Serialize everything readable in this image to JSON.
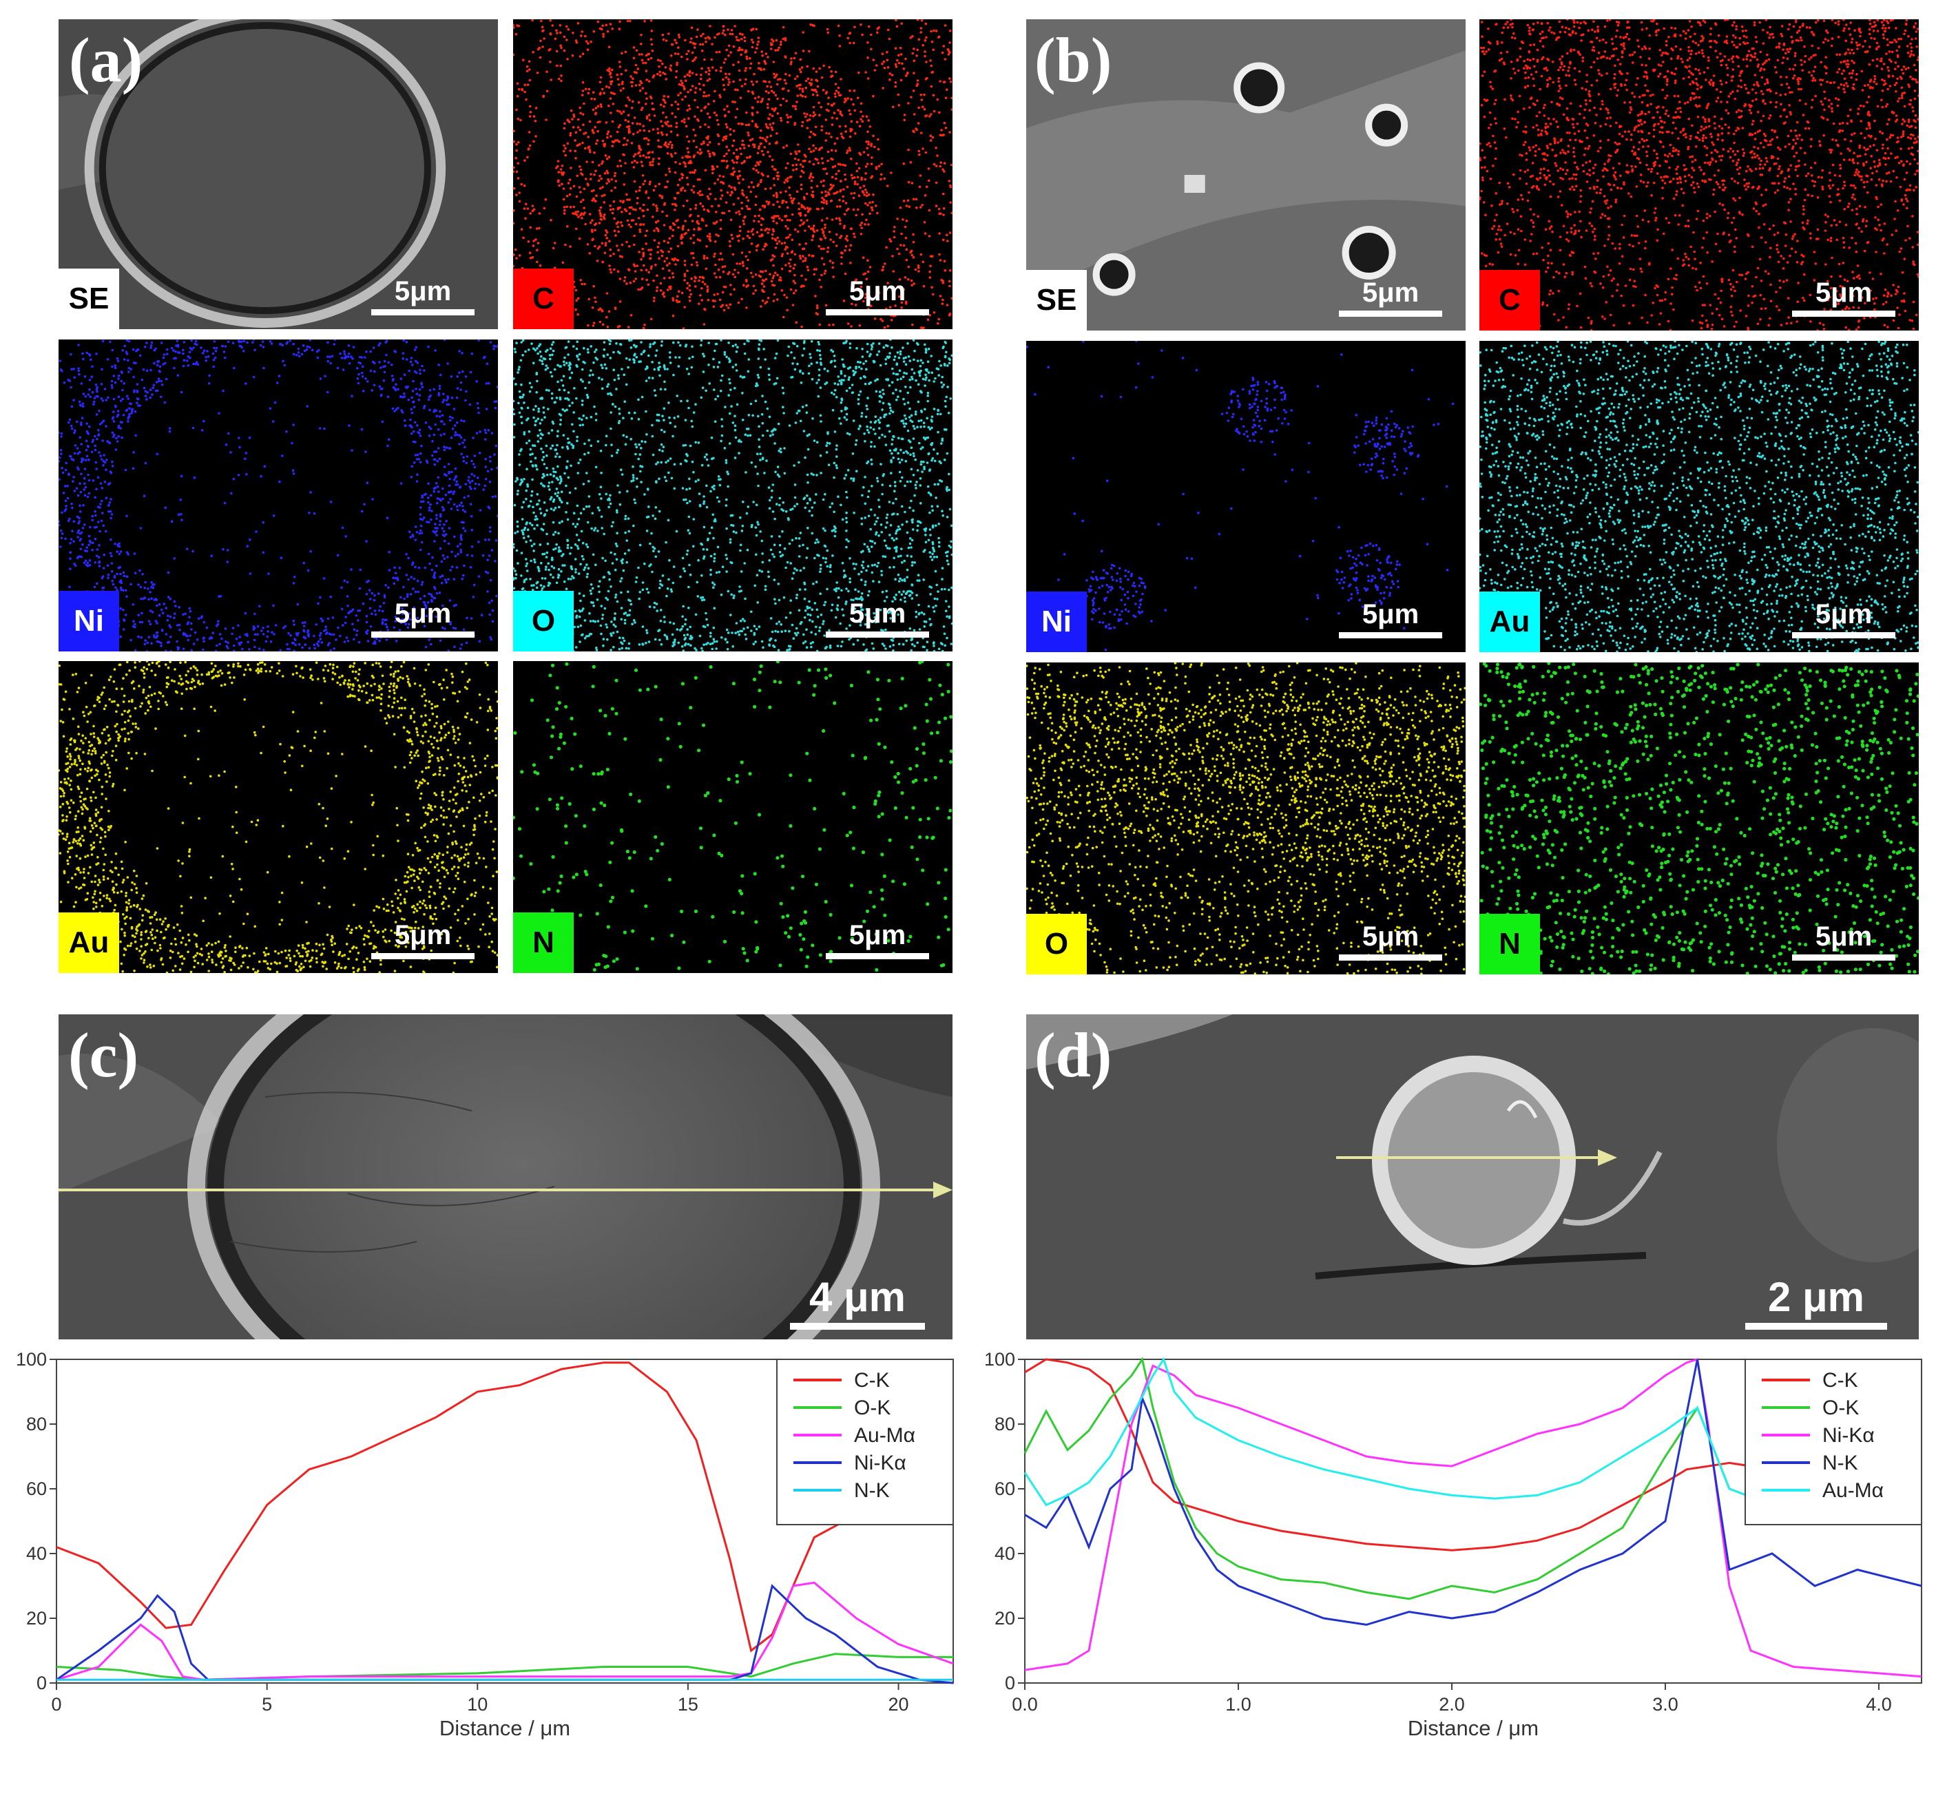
{
  "panels": {
    "a": {
      "letter": "(a)"
    },
    "b": {
      "letter": "(b)"
    },
    "c": {
      "letter": "(c)",
      "scale": "4 μm"
    },
    "d": {
      "letter": "(d)",
      "scale": "2 μm"
    }
  },
  "maps": [
    {
      "label": "SE",
      "scale": "5μm",
      "chip_color": "#ffffff",
      "kind": "se-a"
    },
    {
      "label": "C",
      "scale": "5μm",
      "chip_color": "#ff0000",
      "kind": "map",
      "color": "#ff2a10"
    },
    {
      "label": "Ni",
      "scale": "5μm",
      "chip_color": "#1a1aff",
      "kind": "map",
      "color": "#2a2aff"
    },
    {
      "label": "O",
      "scale": "5μm",
      "chip_color": "#00ffff",
      "kind": "map",
      "color": "#33dddd"
    },
    {
      "label": "Au",
      "scale": "5μm",
      "chip_color": "#ffff00",
      "kind": "map",
      "color": "#e6e000"
    },
    {
      "label": "N",
      "scale": "5μm",
      "chip_color": "#11ee11",
      "kind": "dots",
      "color": "#22dd22"
    },
    {
      "label": "SE",
      "scale": "5μm",
      "chip_color": "#ffffff",
      "kind": "se-b"
    },
    {
      "label": "C",
      "scale": "5μm",
      "chip_color": "#ff0000",
      "kind": "map",
      "color": "#ff2010"
    },
    {
      "label": "Ni",
      "scale": "5μm",
      "chip_color": "#1a1aff",
      "kind": "map",
      "color": "#2a2aff"
    },
    {
      "label": "Au",
      "scale": "5μm",
      "chip_color": "#00ffff",
      "kind": "map",
      "color": "#33dddd"
    },
    {
      "label": "O",
      "scale": "5μm",
      "chip_color": "#ffff00",
      "kind": "map",
      "color": "#e6e000"
    },
    {
      "label": "N",
      "scale": "5μm",
      "chip_color": "#11ee11",
      "kind": "dots",
      "color": "#22dd22"
    }
  ],
  "chart_data": [
    {
      "type": "line",
      "panel": "c",
      "title": "",
      "xlabel": "Distance / μm",
      "ylabel": "",
      "xlim": [
        0,
        21.3
      ],
      "ylim": [
        0,
        100
      ],
      "xticks": [
        0,
        5,
        10,
        15,
        20
      ],
      "xtick_labels": [
        "0",
        "5",
        "10",
        "15",
        "20"
      ],
      "yticks": [
        0,
        20,
        40,
        60,
        80,
        100
      ],
      "ytick_labels": [
        "0",
        "20",
        "40",
        "60",
        "80",
        "100"
      ],
      "legend": "top-right",
      "series": [
        {
          "name": "C-K",
          "color": "#ee2222",
          "x": [
            0,
            1,
            2,
            2.6,
            3.2,
            4,
            5,
            6,
            7,
            8,
            9,
            10,
            11,
            12,
            13,
            13.6,
            14.5,
            15.2,
            16,
            16.5,
            17,
            17.5,
            18,
            19,
            20,
            21.3
          ],
          "y": [
            42,
            37,
            25,
            17,
            18,
            35,
            55,
            66,
            70,
            76,
            82,
            90,
            92,
            97,
            99,
            99,
            90,
            75,
            38,
            10,
            15,
            30,
            45,
            52,
            58,
            62
          ]
        },
        {
          "name": "O-K",
          "color": "#33cc33",
          "x": [
            0,
            1.5,
            2.5,
            3.5,
            6,
            10,
            13,
            15,
            16.5,
            17.5,
            18.5,
            20,
            21.3
          ],
          "y": [
            5,
            4,
            2,
            1,
            2,
            3,
            5,
            5,
            2,
            6,
            9,
            8,
            8
          ]
        },
        {
          "name": "Au-Mα",
          "color": "#ff33ff",
          "x": [
            0,
            1,
            2,
            2.5,
            3,
            3.5,
            6,
            10,
            14,
            16,
            16.5,
            17,
            17.5,
            18,
            19,
            20,
            21.3
          ],
          "y": [
            1,
            5,
            18,
            13,
            2,
            1,
            2,
            2,
            2,
            2,
            3,
            14,
            30,
            31,
            20,
            12,
            6
          ]
        },
        {
          "name": "Ni-Kα",
          "color": "#2233cc",
          "x": [
            0,
            1,
            2,
            2.4,
            2.8,
            3.2,
            3.6,
            6,
            10,
            14,
            16,
            16.5,
            17,
            17.8,
            18.5,
            19.5,
            20.5,
            21.3
          ],
          "y": [
            1,
            10,
            20,
            27,
            22,
            6,
            1,
            1,
            1,
            1,
            1,
            3,
            30,
            20,
            15,
            5,
            1,
            0
          ]
        },
        {
          "name": "N-K",
          "color": "#22ccee",
          "x": [
            0,
            5,
            10,
            15,
            17,
            20,
            21.3
          ],
          "y": [
            1,
            1,
            1,
            1,
            1,
            1,
            1
          ]
        }
      ]
    },
    {
      "type": "line",
      "panel": "d",
      "title": "",
      "xlabel": "Distance / μm",
      "ylabel": "",
      "xlim": [
        0,
        4.2
      ],
      "ylim": [
        0,
        100
      ],
      "xticks": [
        0,
        1,
        2,
        3,
        4
      ],
      "xtick_labels": [
        "0.0",
        "1.0",
        "2.0",
        "3.0",
        "4.0"
      ],
      "yticks": [
        0,
        20,
        40,
        60,
        80,
        100
      ],
      "ytick_labels": [
        "0",
        "20",
        "40",
        "60",
        "80",
        "100"
      ],
      "legend": "top-right",
      "series": [
        {
          "name": "C-K",
          "color": "#ee2222",
          "x": [
            0,
            0.1,
            0.2,
            0.3,
            0.4,
            0.5,
            0.6,
            0.7,
            0.8,
            0.9,
            1.0,
            1.2,
            1.4,
            1.6,
            1.8,
            2.0,
            2.2,
            2.4,
            2.6,
            2.8,
            3.0,
            3.1,
            3.2,
            3.3,
            3.5,
            3.7,
            3.9,
            4.2
          ],
          "y": [
            96,
            100,
            99,
            97,
            92,
            78,
            62,
            56,
            54,
            52,
            50,
            47,
            45,
            43,
            42,
            41,
            42,
            44,
            48,
            55,
            62,
            66,
            67,
            68,
            66,
            65,
            63,
            62
          ]
        },
        {
          "name": "O-K",
          "color": "#33cc33",
          "x": [
            0,
            0.1,
            0.2,
            0.3,
            0.4,
            0.5,
            0.55,
            0.6,
            0.7,
            0.8,
            0.9,
            1.0,
            1.2,
            1.4,
            1.6,
            1.8,
            2.0,
            2.2,
            2.4,
            2.6,
            2.8,
            3.0,
            3.15,
            3.3,
            3.5,
            3.7,
            3.9,
            4.2
          ],
          "y": [
            71,
            84,
            72,
            78,
            88,
            95,
            100,
            85,
            62,
            48,
            40,
            36,
            32,
            31,
            28,
            26,
            30,
            28,
            32,
            40,
            48,
            70,
            85,
            60,
            55,
            60,
            55,
            52
          ]
        },
        {
          "name": "Ni-Kα",
          "color": "#ff33ff",
          "x": [
            0,
            0.1,
            0.2,
            0.3,
            0.4,
            0.5,
            0.6,
            0.7,
            0.8,
            1.0,
            1.2,
            1.4,
            1.6,
            1.8,
            2.0,
            2.2,
            2.4,
            2.6,
            2.8,
            3.0,
            3.1,
            3.15,
            3.2,
            3.3,
            3.4,
            3.6,
            3.8,
            4.0,
            4.2
          ],
          "y": [
            4,
            5,
            6,
            10,
            45,
            80,
            98,
            95,
            89,
            85,
            80,
            75,
            70,
            68,
            67,
            72,
            77,
            80,
            85,
            95,
            99,
            100,
            80,
            30,
            10,
            5,
            4,
            3,
            2
          ]
        },
        {
          "name": "N-K",
          "color": "#2233cc",
          "x": [
            0,
            0.1,
            0.2,
            0.3,
            0.4,
            0.5,
            0.55,
            0.6,
            0.7,
            0.8,
            0.9,
            1.0,
            1.2,
            1.4,
            1.6,
            1.8,
            2.0,
            2.2,
            2.4,
            2.6,
            2.8,
            3.0,
            3.15,
            3.3,
            3.5,
            3.7,
            3.9,
            4.2
          ],
          "y": [
            52,
            48,
            58,
            42,
            60,
            66,
            88,
            80,
            60,
            45,
            35,
            30,
            25,
            20,
            18,
            22,
            20,
            22,
            28,
            35,
            40,
            50,
            100,
            35,
            40,
            30,
            35,
            30
          ]
        },
        {
          "name": "Au-Mα",
          "color": "#22eeee",
          "x": [
            0,
            0.1,
            0.2,
            0.3,
            0.4,
            0.5,
            0.6,
            0.65,
            0.7,
            0.8,
            1.0,
            1.2,
            1.4,
            1.6,
            1.8,
            2.0,
            2.2,
            2.4,
            2.6,
            2.8,
            3.0,
            3.15,
            3.3,
            3.5,
            3.7,
            3.9,
            4.2
          ],
          "y": [
            65,
            55,
            58,
            62,
            70,
            82,
            95,
            100,
            90,
            82,
            75,
            70,
            66,
            63,
            60,
            58,
            57,
            58,
            62,
            70,
            78,
            85,
            60,
            55,
            52,
            50,
            50
          ]
        }
      ]
    }
  ]
}
